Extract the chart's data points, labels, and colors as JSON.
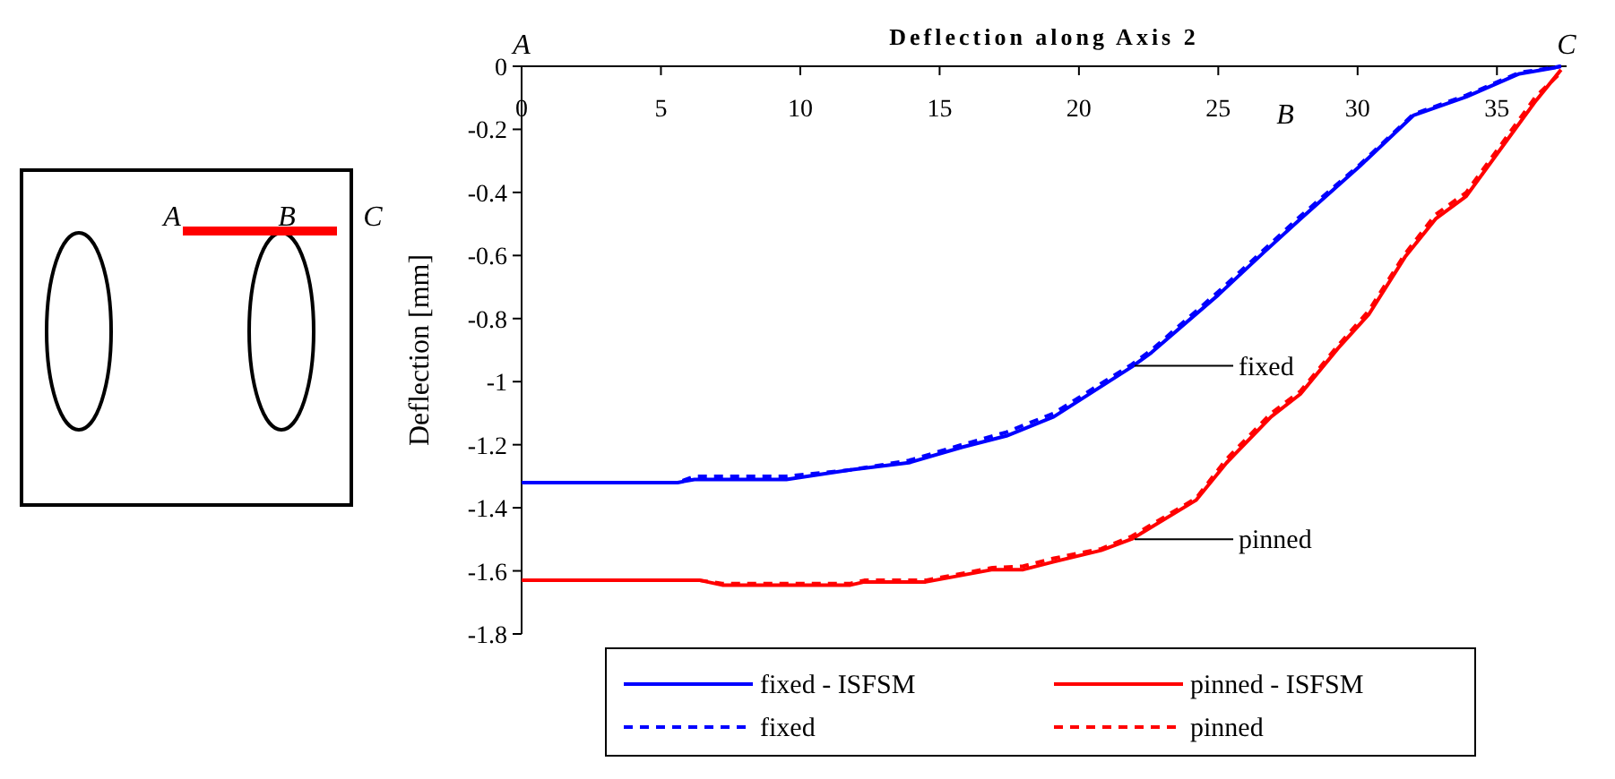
{
  "chart_data": {
    "type": "line",
    "title": "Deflection along Axis 2",
    "ylabel": "Deflection [mm]",
    "xlim": [
      0,
      37.5
    ],
    "xticks": [
      0,
      5,
      10,
      15,
      20,
      25,
      30,
      35
    ],
    "ylim": [
      -1.8,
      0
    ],
    "yticks": [
      0,
      -0.2,
      -0.4,
      -0.6,
      -0.8,
      -1,
      -1.2,
      -1.4,
      -1.6,
      -1.8
    ],
    "grid": false,
    "legend": "bottom",
    "marker": "none",
    "series": [
      {
        "name": "fixed - ISFSM",
        "color": "#0000ff",
        "line_style": "solid",
        "x": [
          0,
          5.6,
          6.2,
          9.5,
          11.8,
          13.9,
          15.8,
          17.4,
          19.1,
          21.9,
          22.6,
          25.0,
          26.6,
          27.95,
          30.1,
          32.0,
          33.9,
          35.8,
          37.1,
          37.3
        ],
        "values": [
          -1.32,
          -1.32,
          -1.31,
          -1.31,
          -1.28,
          -1.257,
          -1.208,
          -1.172,
          -1.111,
          -0.953,
          -0.908,
          -0.725,
          -0.593,
          -0.484,
          -0.315,
          -0.156,
          -0.097,
          -0.024,
          -0.004,
          0
        ]
      },
      {
        "name": "pinned - ISFSM",
        "color": "#ff0000",
        "line_style": "solid",
        "x": [
          0,
          6.4,
          7.2,
          11.8,
          12.3,
          14.5,
          16.9,
          18.0,
          19.1,
          20.8,
          21.9,
          24.2,
          25.3,
          26.9,
          27.95,
          29.3,
          30.4,
          31.7,
          32.8,
          33.9,
          35.3,
          36.4,
          37.3
        ],
        "values": [
          -1.63,
          -1.63,
          -1.645,
          -1.645,
          -1.635,
          -1.635,
          -1.596,
          -1.596,
          -1.571,
          -1.535,
          -1.499,
          -1.376,
          -1.257,
          -1.111,
          -1.039,
          -0.894,
          -0.787,
          -0.605,
          -0.484,
          -0.412,
          -0.242,
          -0.109,
          -0.011
        ]
      },
      {
        "name": "fixed",
        "color": "#0000ff",
        "line_style": "dashed",
        "x": [
          0,
          5.6,
          6.2,
          9.5,
          11.8,
          13.9,
          15.8,
          17.4,
          19.1,
          21.9,
          22.6,
          25.0,
          26.6,
          27.95,
          30.1,
          32.0,
          33.9,
          35.8,
          37.1,
          37.3
        ],
        "values": [
          -1.32,
          -1.32,
          -1.3,
          -1.3,
          -1.28,
          -1.25,
          -1.2,
          -1.16,
          -1.1,
          -0.945,
          -0.9,
          -0.715,
          -0.585,
          -0.475,
          -0.31,
          -0.152,
          -0.092,
          -0.02,
          -0.003,
          0
        ]
      },
      {
        "name": "pinned",
        "color": "#ff0000",
        "line_style": "dashed",
        "x": [
          0,
          6.4,
          7.2,
          11.8,
          12.3,
          14.5,
          16.9,
          18.0,
          19.1,
          20.8,
          21.9,
          24.2,
          25.3,
          26.9,
          27.95,
          29.3,
          30.4,
          31.7,
          32.8,
          33.9,
          35.3,
          36.4,
          37.3
        ],
        "values": [
          -1.63,
          -1.63,
          -1.64,
          -1.64,
          -1.63,
          -1.63,
          -1.59,
          -1.585,
          -1.56,
          -1.53,
          -1.49,
          -1.37,
          -1.245,
          -1.1,
          -1.03,
          -0.885,
          -0.775,
          -0.595,
          -0.47,
          -0.4,
          -0.23,
          -0.095,
          -0.02
        ]
      }
    ],
    "annotations": [
      "A",
      "B",
      "C",
      {
        "text": "fixed",
        "x": 22,
        "y": -0.95
      },
      {
        "text": "pinned",
        "x": 22,
        "y": -1.5
      },
      "A",
      "B",
      "C"
    ]
  }
}
